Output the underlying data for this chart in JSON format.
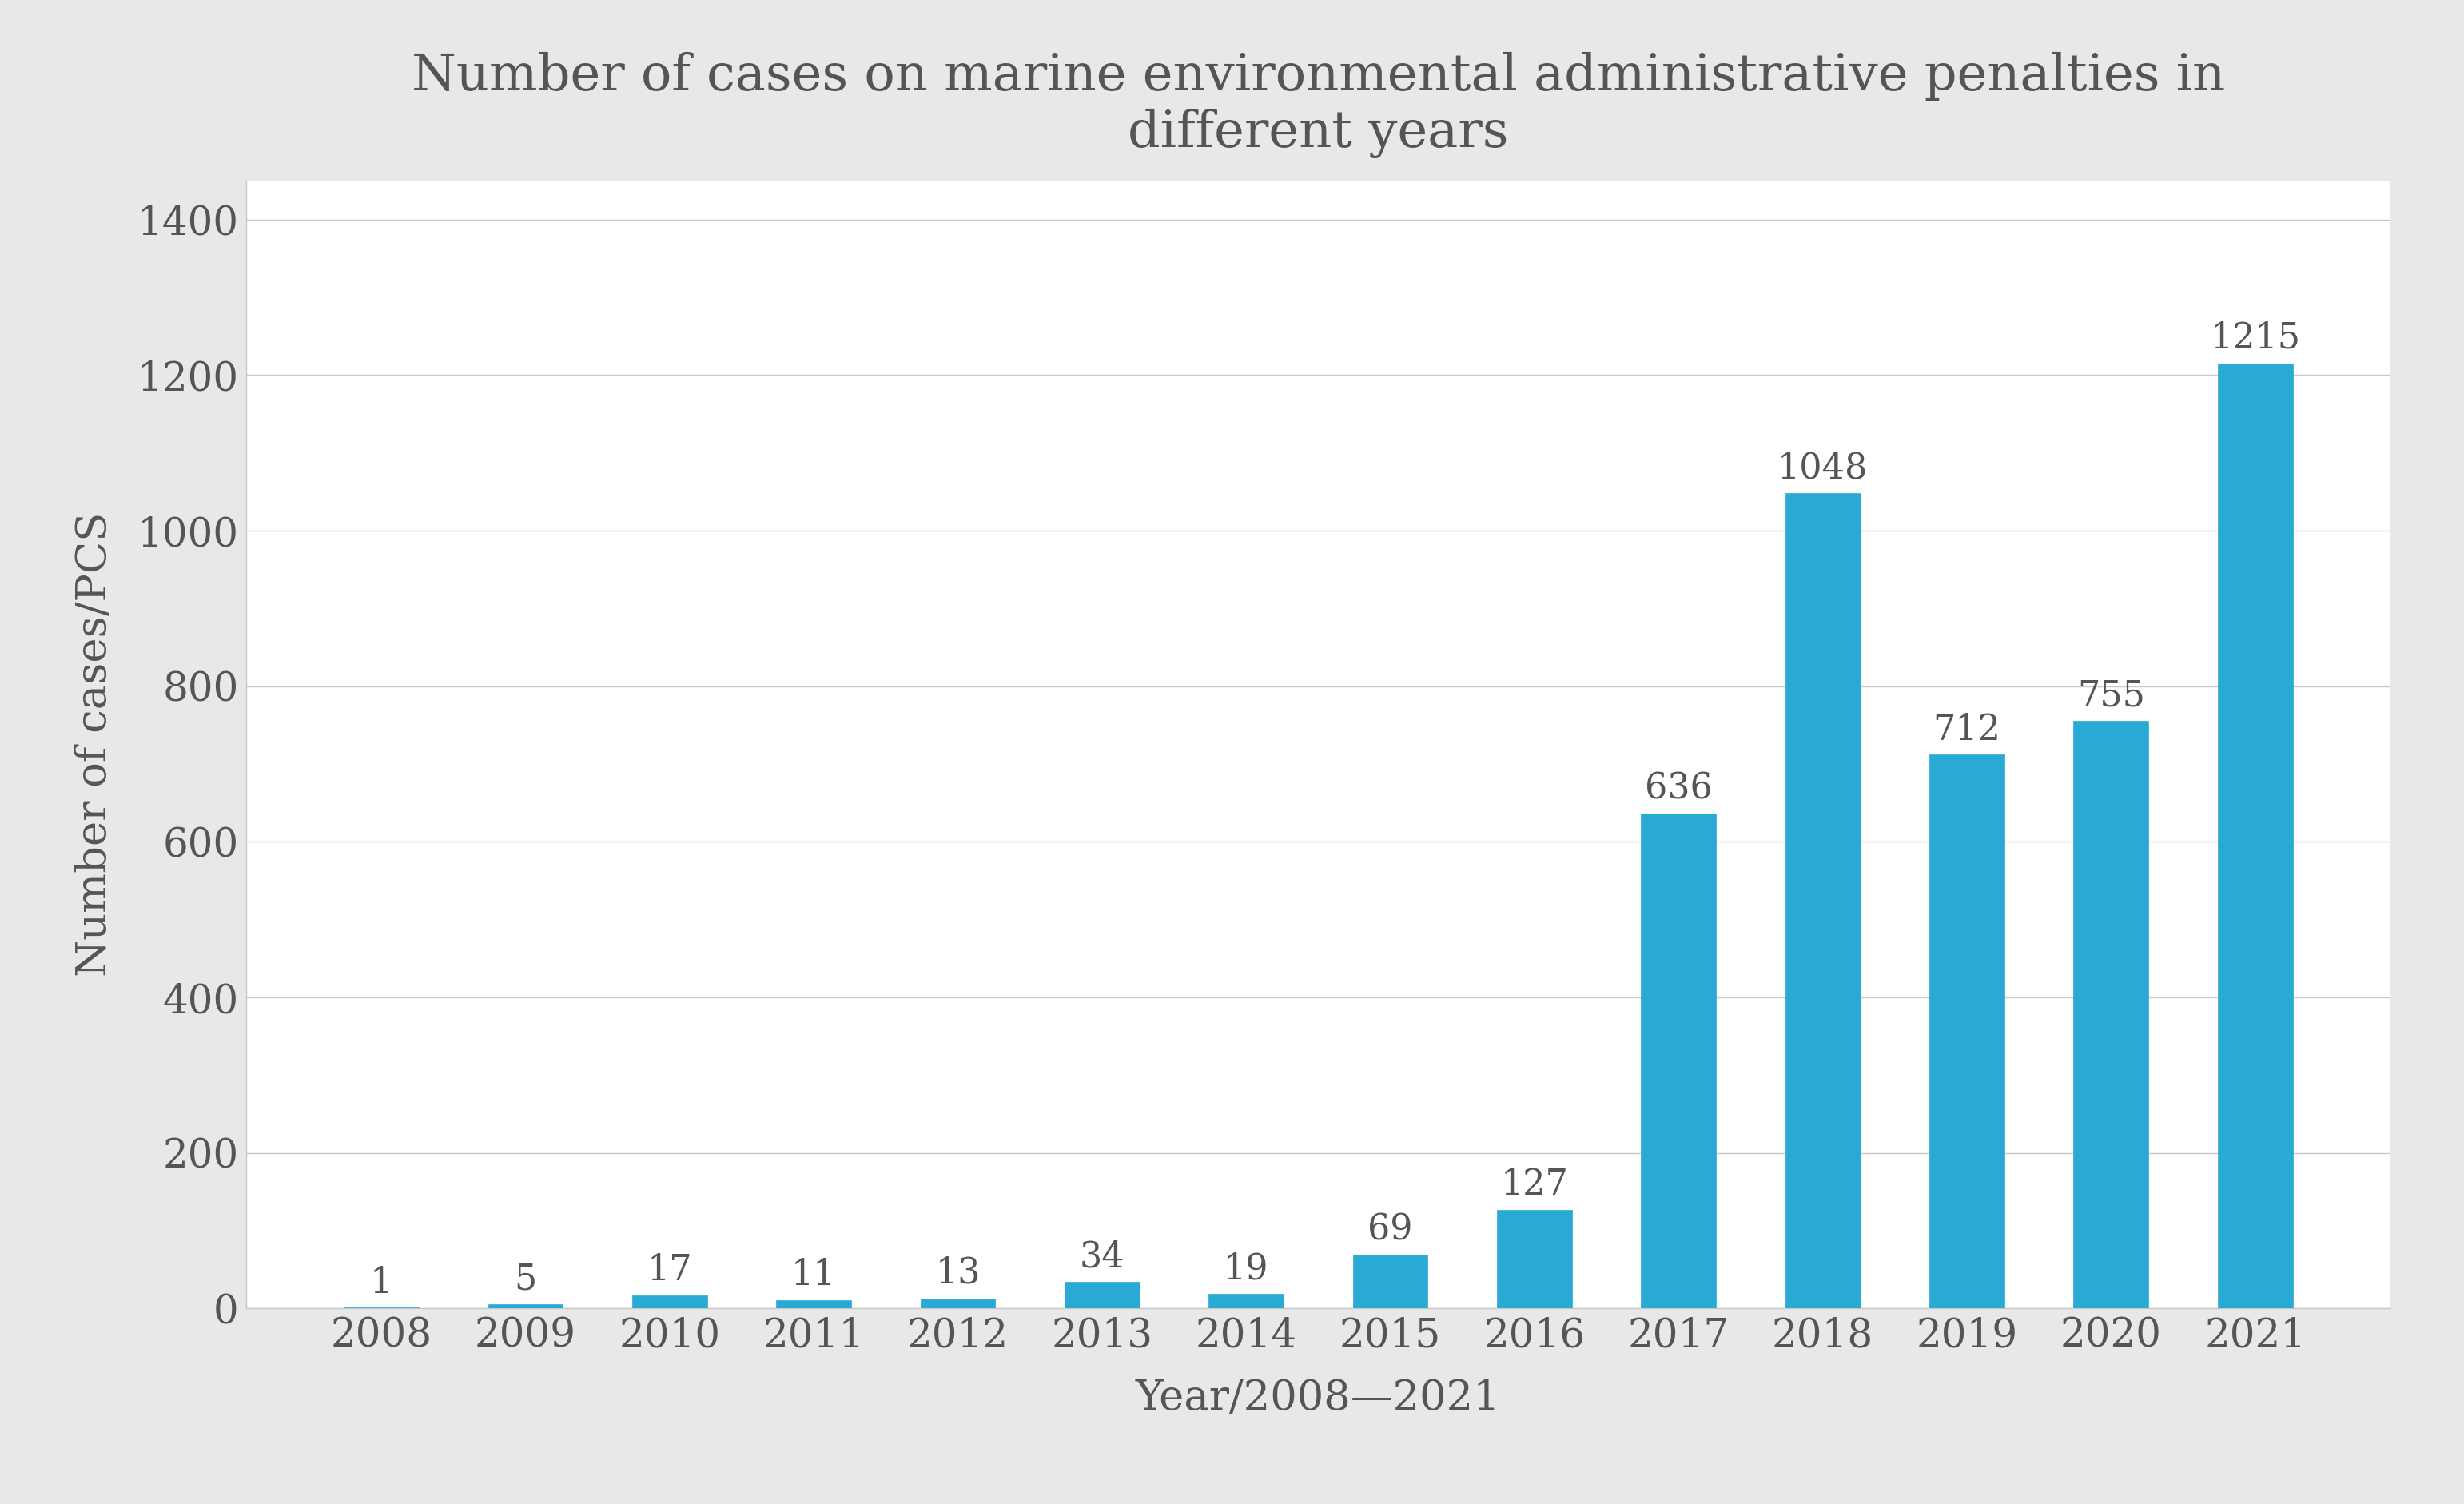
{
  "title": "Number of cases on marine environmental administrative penalties in\ndifferent years",
  "xlabel": "Year/2008—2021",
  "ylabel": "Number of cases/PCS",
  "categories": [
    "2008",
    "2009",
    "2010",
    "2011",
    "2012",
    "2013",
    "2014",
    "2015",
    "2016",
    "2017",
    "2018",
    "2019",
    "2020",
    "2021"
  ],
  "values": [
    1,
    5,
    17,
    11,
    13,
    34,
    19,
    69,
    127,
    636,
    1048,
    712,
    755,
    1215
  ],
  "bar_color": "#29aad4",
  "ylim": [
    0,
    1450
  ],
  "yticks": [
    0,
    200,
    400,
    600,
    800,
    1000,
    1200,
    1400
  ],
  "title_fontsize": 46,
  "label_fontsize": 38,
  "tick_fontsize": 36,
  "value_fontsize": 32,
  "background_color": "#ffffff",
  "outer_background": "#e8e8e8",
  "grid_color": "#c8c8c8",
  "bar_width": 0.52,
  "text_color": "#555555"
}
